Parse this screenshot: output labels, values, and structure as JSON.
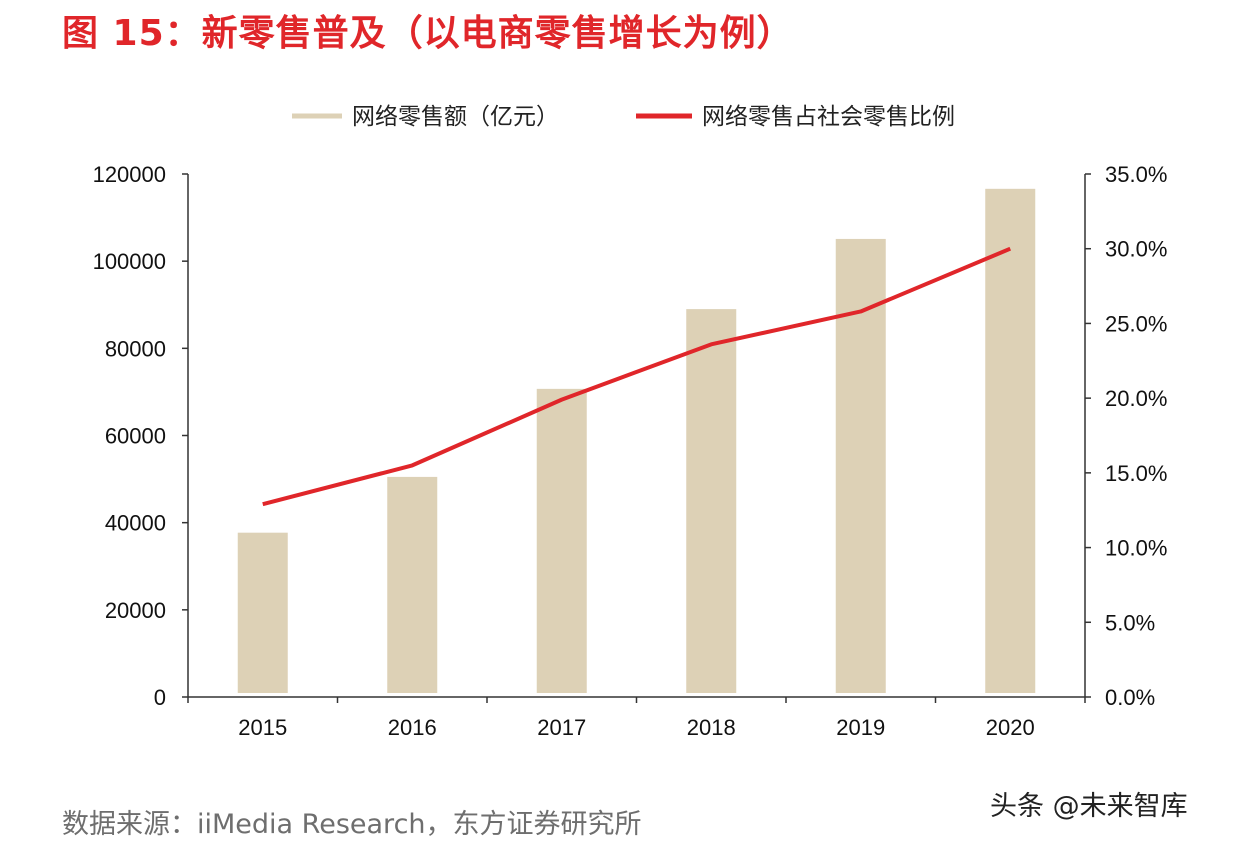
{
  "title": "图 15：新零售普及（以电商零售增长为例）",
  "source": "数据来源：iiMedia Research，东方证券研究所",
  "watermark": "头条 @未来智库",
  "chart_data": {
    "type": "bar+line",
    "categories": [
      "2015",
      "2016",
      "2017",
      "2018",
      "2019",
      "2020"
    ],
    "series": [
      {
        "name": "网络零售额（亿元）",
        "type": "bar",
        "axis": "left",
        "color": "#ddd1b6",
        "values": [
          37700,
          50500,
          70700,
          89000,
          105100,
          116600
        ]
      },
      {
        "name": "网络零售占社会零售比例",
        "type": "line",
        "axis": "right",
        "color": "#e0262a",
        "values": [
          12.9,
          15.5,
          19.9,
          23.6,
          25.8,
          30.0
        ]
      }
    ],
    "left_axis": {
      "ylim": [
        0,
        120000
      ],
      "ticks": [
        "0",
        "20000",
        "40000",
        "60000",
        "80000",
        "100000",
        "120000"
      ]
    },
    "right_axis": {
      "ylim": [
        0,
        35
      ],
      "ticks": [
        "0.0%",
        "5.0%",
        "10.0%",
        "15.0%",
        "20.0%",
        "25.0%",
        "30.0%",
        "35.0%"
      ]
    },
    "legend": "top-center",
    "grid": false
  }
}
